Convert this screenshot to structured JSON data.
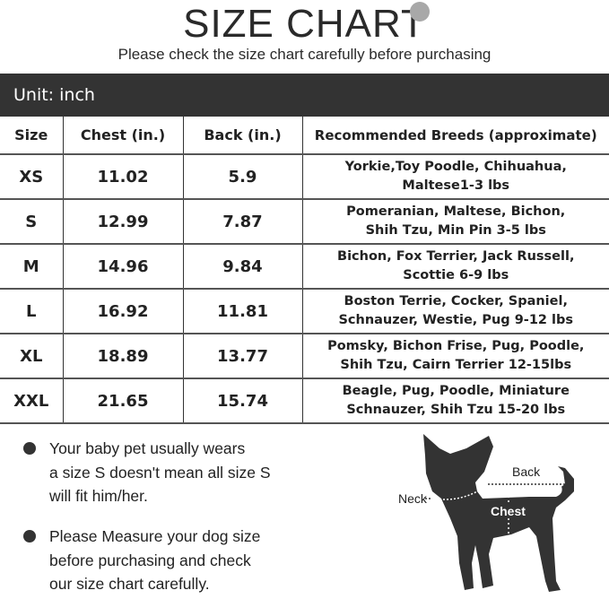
{
  "header": {
    "title": "SIZE CHART",
    "subtitle": "Please check the size chart carefully before purchasing",
    "unit": "Unit: inch"
  },
  "table": {
    "columns": [
      "Size",
      "Chest (in.)",
      "Back (in.)",
      "Recommended Breeds (approximate)"
    ],
    "rows": [
      {
        "size": "XS",
        "chest": "11.02",
        "back": "5.9",
        "breeds1": "Yorkie,Toy Poodle, Chihuahua,",
        "breeds2": "Maltese1-3 lbs"
      },
      {
        "size": "S",
        "chest": "12.99",
        "back": "7.87",
        "breeds1": "Pomeranian, Maltese, Bichon,",
        "breeds2": "Shih Tzu, Min Pin 3-5 lbs"
      },
      {
        "size": "M",
        "chest": "14.96",
        "back": "9.84",
        "breeds1": "Bichon, Fox Terrier, Jack Russell,",
        "breeds2": "Scottie 6-9 lbs"
      },
      {
        "size": "L",
        "chest": "16.92",
        "back": "11.81",
        "breeds1": "Boston Terrie, Cocker, Spaniel,",
        "breeds2": "Schnauzer, Westie, Pug 9-12 lbs"
      },
      {
        "size": "XL",
        "chest": "18.89",
        "back": "13.77",
        "breeds1": "Pomsky, Bichon Frise, Pug, Poodle,",
        "breeds2": "Shih Tzu, Cairn Terrier 12-15lbs"
      },
      {
        "size": "XXL",
        "chest": "21.65",
        "back": "15.74",
        "breeds1": "Beagle, Pug, Poodle, Miniature",
        "breeds2": "Schnauzer, Shih Tzu 15-20 lbs"
      }
    ]
  },
  "notes": [
    {
      "lines": [
        "Your baby pet usually wears",
        "a size S doesn't mean all size S",
        "will fit him/her."
      ]
    },
    {
      "lines": [
        "Please Measure your dog size",
        "before purchasing and check",
        "our size chart carefully."
      ]
    }
  ],
  "diagram": {
    "neck": "Neck",
    "back": "Back",
    "chest": "Chest"
  }
}
